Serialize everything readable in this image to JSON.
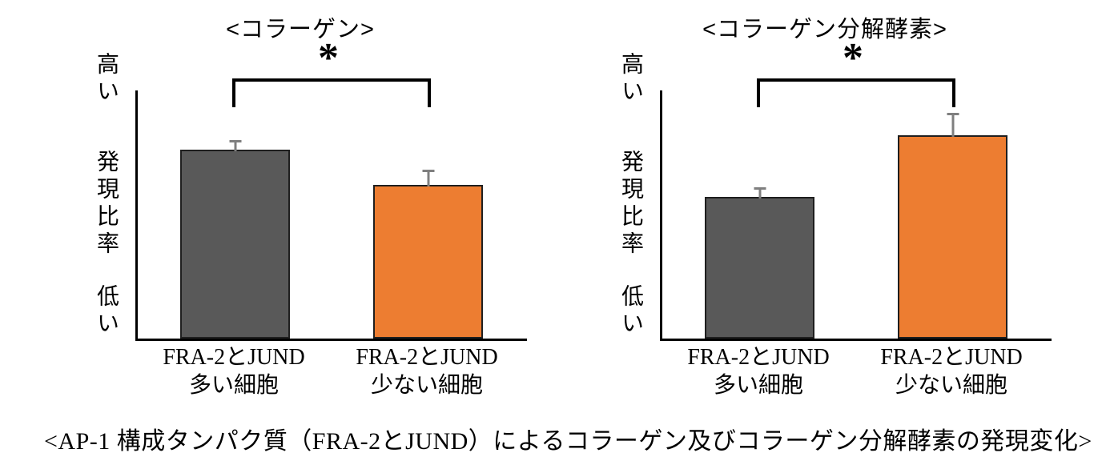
{
  "page_background": "#ffffff",
  "colors": {
    "bar_gray": "#595959",
    "bar_orange": "#ED7D31",
    "error_bar": "#7f7f7f",
    "axis": "#000000",
    "text": "#000000"
  },
  "caption": "<AP-1 構成タンパク質（FRA-2とJUND）によるコラーゲン及びコラーゲン分解酵素の発現変化>",
  "chart_data": [
    {
      "type": "bar",
      "title": "<コラーゲン>",
      "y_axis": {
        "top_label": "高い",
        "axis_label": "発現比率",
        "bottom_label": "低い",
        "scale": "qualitative",
        "ylim": [
          0,
          1
        ],
        "gridlines": false
      },
      "categories": [
        {
          "line1": "FRA-2とJUND",
          "line2": "多い細胞"
        },
        {
          "line1": "FRA-2とJUND",
          "line2": "少ない細胞"
        }
      ],
      "values": [
        0.76,
        0.62
      ],
      "errors": [
        0.04,
        0.06
      ],
      "bar_colors": [
        "#595959",
        "#ED7D31"
      ],
      "significance": {
        "label": "*",
        "between": [
          0,
          1
        ]
      }
    },
    {
      "type": "bar",
      "title": "<コラーゲン分解酵素>",
      "y_axis": {
        "top_label": "高い",
        "axis_label": "発現比率",
        "bottom_label": "低い",
        "scale": "qualitative",
        "ylim": [
          0,
          1
        ],
        "gridlines": false
      },
      "categories": [
        {
          "line1": "FRA-2とJUND",
          "line2": "多い細胞"
        },
        {
          "line1": "FRA-2とJUND",
          "line2": "少ない細胞"
        }
      ],
      "values": [
        0.57,
        0.82
      ],
      "errors": [
        0.04,
        0.09
      ],
      "bar_colors": [
        "#595959",
        "#ED7D31"
      ],
      "significance": {
        "label": "*",
        "between": [
          0,
          1
        ]
      }
    }
  ]
}
